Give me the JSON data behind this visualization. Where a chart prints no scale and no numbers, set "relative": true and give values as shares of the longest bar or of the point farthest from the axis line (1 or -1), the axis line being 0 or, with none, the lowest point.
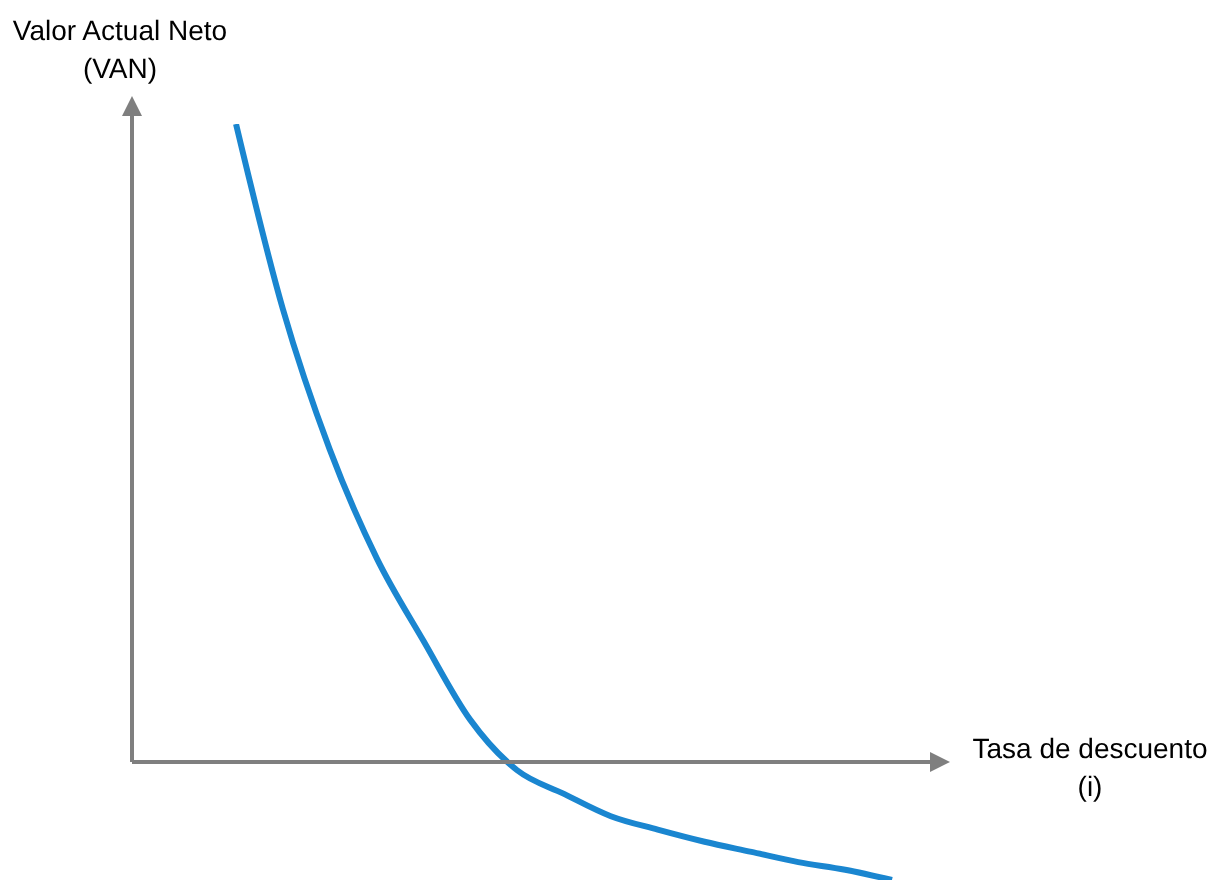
{
  "chart_data": {
    "type": "line",
    "xlabel": "Tasa de descuento (i)",
    "ylabel": "Valor Actual Neto (VAN)",
    "relative": true,
    "categories": [
      null,
      null,
      null,
      null,
      null,
      null,
      null,
      null,
      null,
      null,
      null,
      null,
      null,
      null,
      null
    ],
    "series": [
      {
        "color": "#1a86d0",
        "values": [
          1,
          0.71,
          0.49,
          0.32,
          0.19,
          0.066,
          -0.013,
          -0.05,
          -0.085,
          -0.106,
          -0.125,
          -0.141,
          -0.157,
          -0.169,
          -0.185
        ]
      }
    ]
  }
}
